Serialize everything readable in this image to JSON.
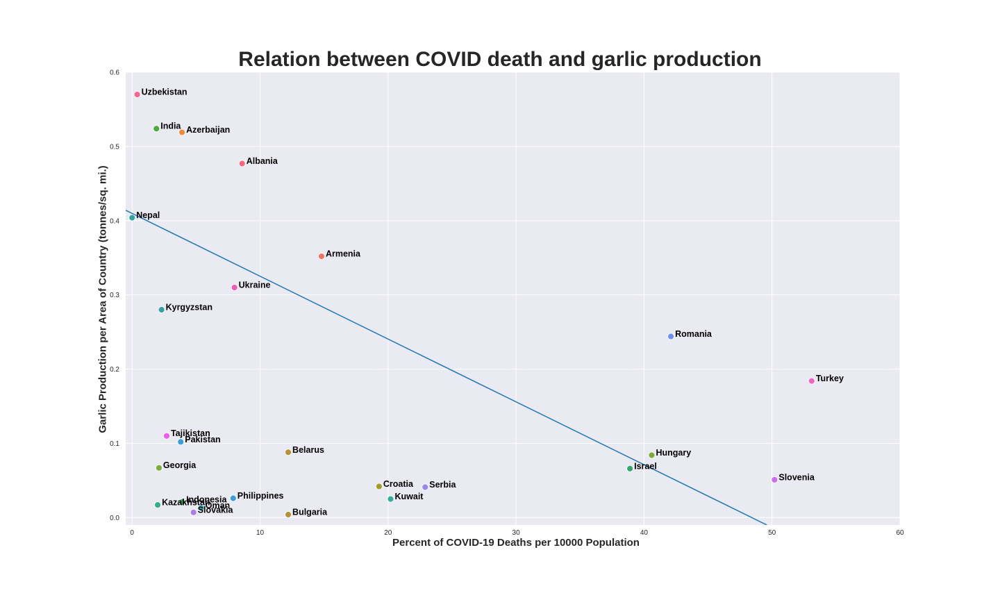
{
  "chart_data": {
    "type": "scatter",
    "title": "Relation between COVID death and garlic production",
    "xlabel": "Percent of COVID-19 Deaths per 10000 Population",
    "ylabel": "Garlic Production per Area of Country (tonnes/sq. mi.)",
    "xlim": [
      -0.5,
      60
    ],
    "ylim": [
      -0.01,
      0.6
    ],
    "xticks": [
      0,
      10,
      20,
      30,
      40,
      50,
      60
    ],
    "yticks": [
      0.0,
      0.1,
      0.2,
      0.3,
      0.4,
      0.5,
      0.6
    ],
    "xtick_labels": [
      "0",
      "10",
      "20",
      "30",
      "40",
      "50",
      "60"
    ],
    "ytick_labels": [
      "0.0",
      "0.1",
      "0.2",
      "0.3",
      "0.4",
      "0.5",
      "0.6"
    ],
    "grid": true,
    "regression_line": {
      "x": [
        -0.5,
        49.6
      ],
      "y": [
        0.414,
        -0.01
      ],
      "color": "#1f77b4"
    },
    "points": [
      {
        "label": "Uzbekistan",
        "x": 0.4,
        "y": 0.57,
        "color": "#f2668f"
      },
      {
        "label": "India",
        "x": 1.9,
        "y": 0.524,
        "color": "#4ea83f"
      },
      {
        "label": "Azerbaijan",
        "x": 3.9,
        "y": 0.519,
        "color": "#ef8a3a"
      },
      {
        "label": "Albania",
        "x": 8.6,
        "y": 0.477,
        "color": "#f26a7b"
      },
      {
        "label": "Nepal",
        "x": 0.0,
        "y": 0.404,
        "color": "#36a3a3"
      },
      {
        "label": "Armenia",
        "x": 14.8,
        "y": 0.352,
        "color": "#f47262"
      },
      {
        "label": "Ukraine",
        "x": 8.0,
        "y": 0.31,
        "color": "#ed5fb5"
      },
      {
        "label": "Kyrgyzstan",
        "x": 2.3,
        "y": 0.28,
        "color": "#36a3a3"
      },
      {
        "label": "Romania",
        "x": 42.1,
        "y": 0.244,
        "color": "#6f8ff0"
      },
      {
        "label": "Turkey",
        "x": 53.1,
        "y": 0.184,
        "color": "#f064c4"
      },
      {
        "label": "Tajikistan",
        "x": 2.7,
        "y": 0.11,
        "color": "#ec5ce8"
      },
      {
        "label": "Pakistan",
        "x": 3.8,
        "y": 0.102,
        "color": "#3b9fd3"
      },
      {
        "label": "Belarus",
        "x": 12.2,
        "y": 0.088,
        "color": "#b39434"
      },
      {
        "label": "Hungary",
        "x": 40.6,
        "y": 0.084,
        "color": "#7eab35"
      },
      {
        "label": "Georgia",
        "x": 2.1,
        "y": 0.067,
        "color": "#7eab35"
      },
      {
        "label": "Israel",
        "x": 38.9,
        "y": 0.066,
        "color": "#36a86a"
      },
      {
        "label": "Slovenia",
        "x": 50.2,
        "y": 0.051,
        "color": "#cc6ced"
      },
      {
        "label": "Croatia",
        "x": 19.3,
        "y": 0.042,
        "color": "#a39a2e"
      },
      {
        "label": "Serbia",
        "x": 22.9,
        "y": 0.041,
        "color": "#9a88e8"
      },
      {
        "label": "Philippines",
        "x": 7.9,
        "y": 0.026,
        "color": "#3b9fd3"
      },
      {
        "label": "Kuwait",
        "x": 20.2,
        "y": 0.025,
        "color": "#36ad9a"
      },
      {
        "label": "Indonesia",
        "x": 3.9,
        "y": 0.021,
        "color": "#36a86a"
      },
      {
        "label": "Kazakhstan",
        "x": 2.0,
        "y": 0.017,
        "color": "#36ad8a"
      },
      {
        "label": "Oman",
        "x": 5.4,
        "y": 0.013,
        "color": "#36a3b3"
      },
      {
        "label": "Slovakia",
        "x": 4.8,
        "y": 0.007,
        "color": "#aa7ee8"
      },
      {
        "label": "Bulgaria",
        "x": 12.2,
        "y": 0.004,
        "color": "#b39434"
      }
    ],
    "plot_background": "#eaeaf2",
    "grid_color": "#ffffff"
  }
}
